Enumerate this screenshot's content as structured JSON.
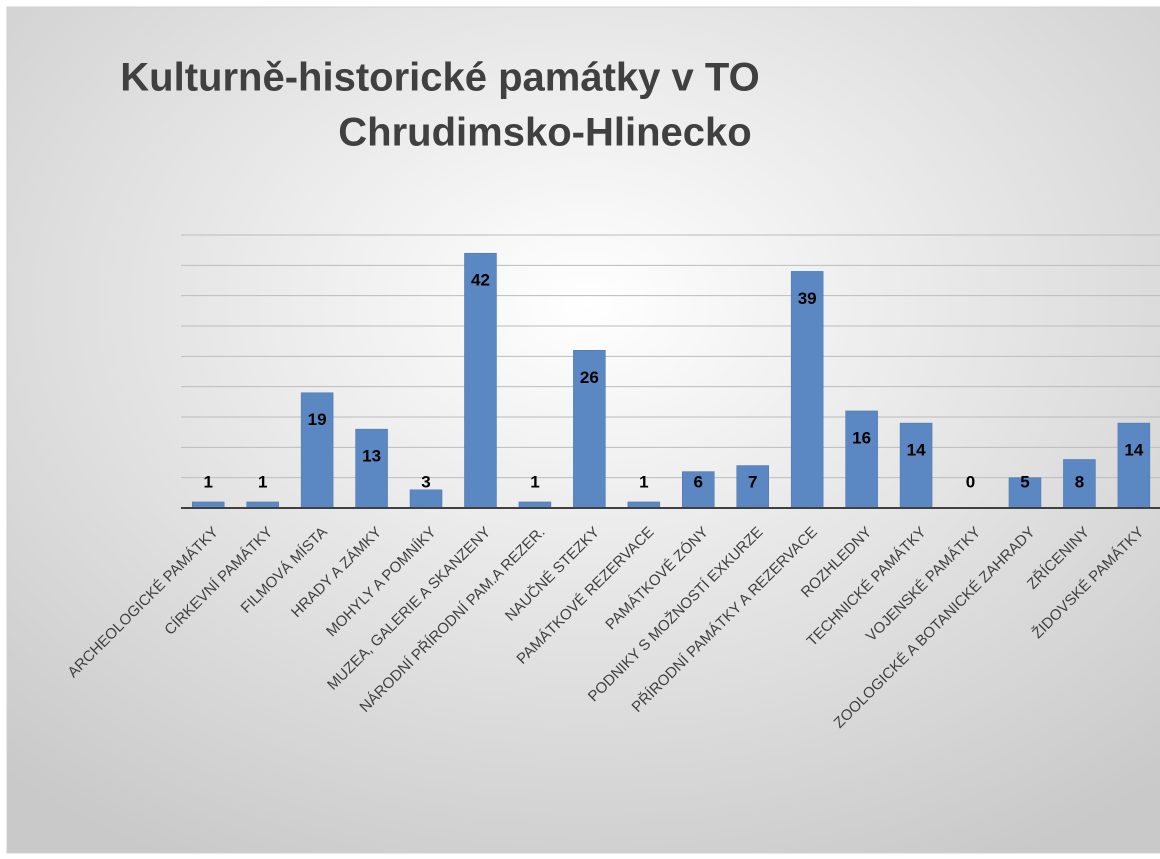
{
  "chart_data": {
    "type": "bar",
    "title": [
      "Kulturně-historické památky v TO",
      "Chrudimsko-Hlinecko"
    ],
    "categories": [
      "ARCHEOLOGICKÉ PAMÁTKY",
      "CÍRKEVNÍ PAMÁTKY",
      "FILMOVÁ MÍSTA",
      "HRADY A ZÁMKY",
      "MOHYLY A POMNÍKY",
      "MUZEA, GALERIE A SKANZENY",
      "NÁRODNÍ PŘÍRODNÍ PAM.A REZER.",
      "NAUČNÉ STEZKY",
      "PAMÁTKOVÉ REZERVACE",
      "PAMÁTKOVÉ ZÓNY",
      "PODNIKY S MOŽNOSTÍ EXKURZE",
      "PŘÍRODNÍ PAMÁTKY A REZERVACE",
      "ROZHLEDNY",
      "TECHNICKÉ PAMÁTKY",
      "VOJENSKÉ PAMÁTKY",
      "ZOOLOGICKÉ A BOTANICKÉ ZAHRADY",
      "ZŘÍCENINY",
      "ŽIDOVSKÉ PAMÁTKY"
    ],
    "values": [
      1,
      1,
      19,
      13,
      3,
      42,
      1,
      26,
      1,
      6,
      7,
      39,
      16,
      14,
      0,
      5,
      8,
      14
    ],
    "color": "#5b87c2",
    "ylim": [
      0,
      45
    ],
    "yticks": [
      0,
      5,
      10,
      15,
      20,
      25,
      30,
      35,
      40,
      45
    ],
    "grid": true
  }
}
